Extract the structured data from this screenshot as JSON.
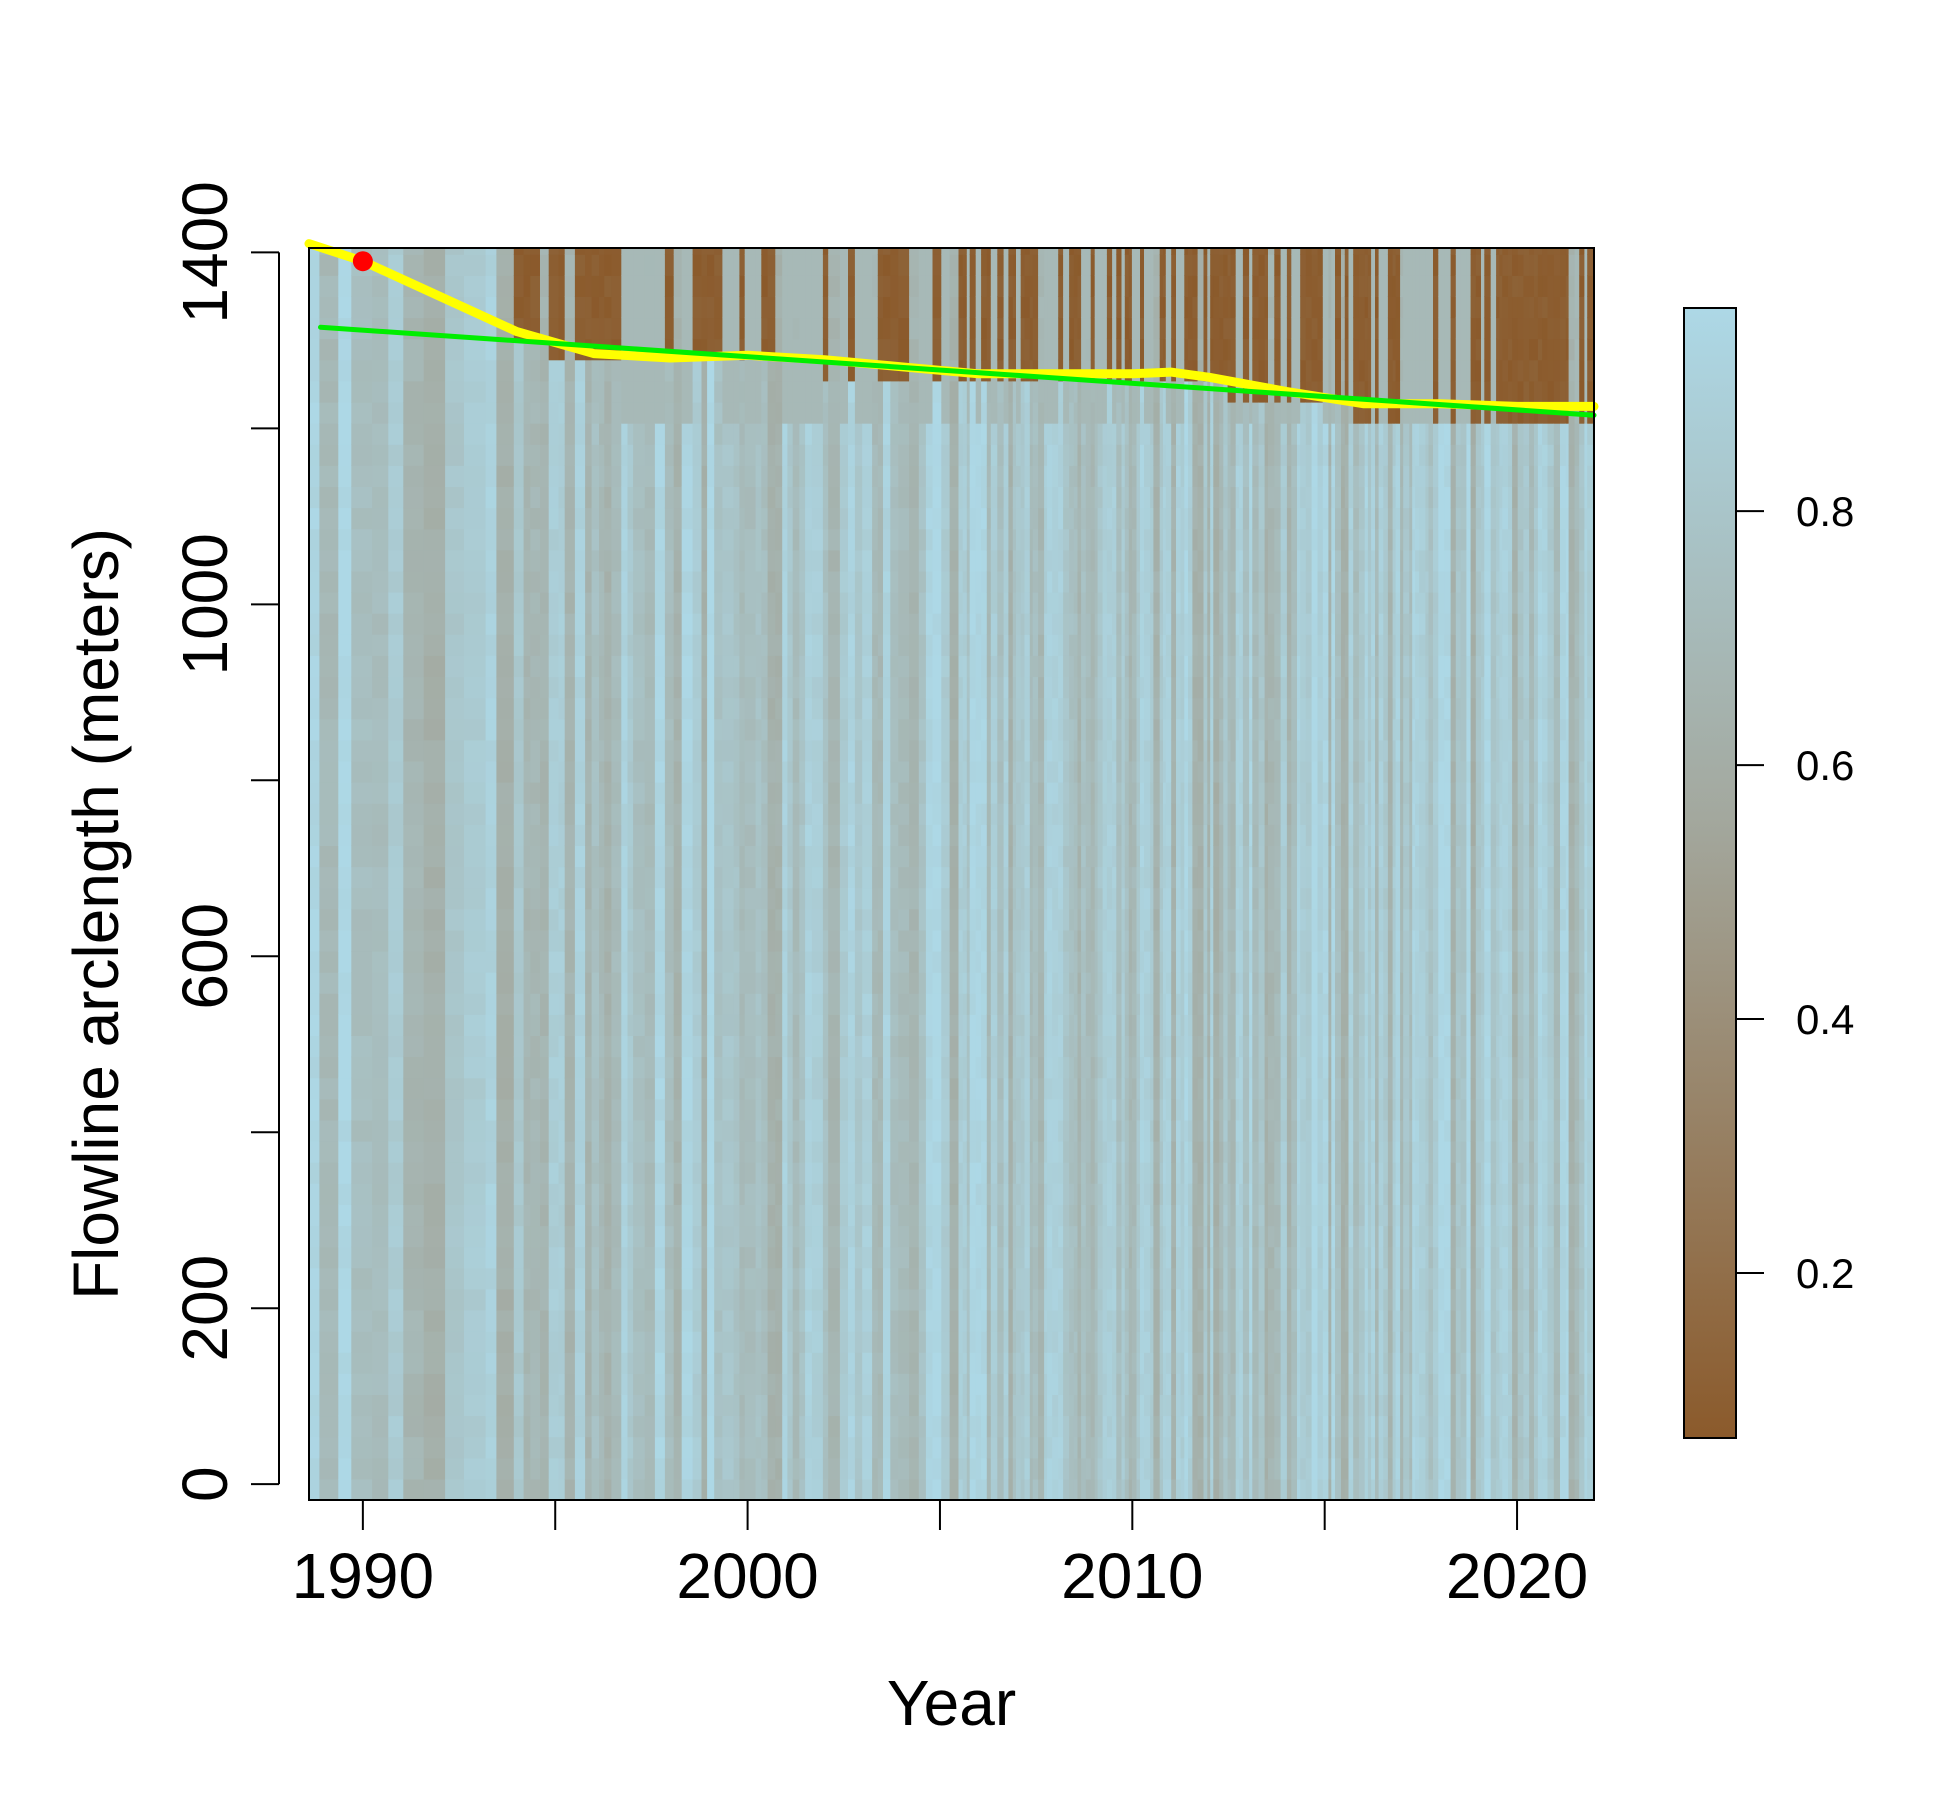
{
  "chart_data": {
    "type": "heatmap",
    "title": "",
    "xlabel": "Year",
    "ylabel": "Flowline arclength (meters)",
    "xlim": [
      1988.6,
      2022.0
    ],
    "ylim": [
      -18,
      1405
    ],
    "x_ticks": [
      1990,
      1995,
      2000,
      2005,
      2010,
      2015,
      2020
    ],
    "x_tick_labels": [
      "1990",
      "",
      "2000",
      "",
      "2010",
      "",
      "2020"
    ],
    "y_ticks": [
      0,
      200,
      400,
      600,
      800,
      1000,
      1200,
      1400
    ],
    "y_tick_labels": [
      "0",
      "200",
      "",
      "600",
      "",
      "1000",
      "",
      "1400"
    ],
    "colorbar": {
      "range": [
        0.07,
        0.96
      ],
      "ticks": [
        0.2,
        0.4,
        0.6,
        0.8
      ],
      "tick_labels": [
        "0.2",
        "0.4",
        "0.6",
        "0.8"
      ],
      "low_color": "#8b5a2b",
      "high_color": "#add8e6"
    },
    "heatmap_note_values": "column values 0.07 (terminus/ocean) to 0.96 (ice)",
    "terminus_point": {
      "x": 1990.0,
      "y": 1390
    },
    "series": [
      {
        "color": "#ffff00",
        "x": [
          1988.6,
          1990,
          1992,
          1994,
          1996,
          1998,
          2000,
          2002,
          2004,
          2006,
          2008,
          2010,
          2011,
          2012,
          2014,
          2016,
          2018,
          2020,
          2022
        ],
        "y": [
          1410,
          1390,
          1350,
          1310,
          1285,
          1280,
          1283,
          1278,
          1270,
          1262,
          1262,
          1262,
          1264,
          1258,
          1242,
          1228,
          1228,
          1225,
          1225
        ]
      },
      {
        "color": "#00ee00",
        "x": [
          1988.9,
          2022.0
        ],
        "y": [
          1315,
          1215
        ]
      }
    ]
  }
}
